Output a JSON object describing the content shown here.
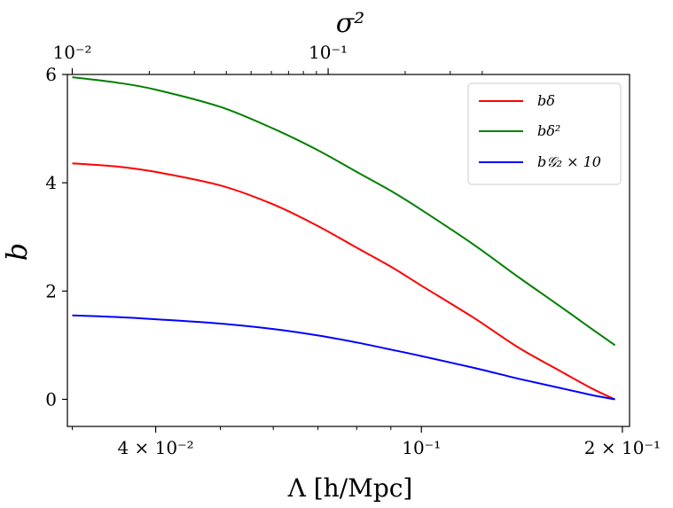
{
  "chart_data": {
    "type": "line",
    "xlabel": "Λ [h/Mpc]",
    "ylabel": "b",
    "top_xlabel": "σ²",
    "xscale": "log",
    "xlim": [
      0.0295,
      0.205
    ],
    "ylim": [
      -0.5,
      6.0
    ],
    "yticks": [
      0,
      2,
      4,
      6
    ],
    "ytick_labels": [
      "0",
      "2",
      "4",
      "6"
    ],
    "xticks": [
      0.04,
      0.1,
      0.2
    ],
    "xtick_labels": [
      "4 × 10⁻²",
      "10⁻¹",
      "2 × 10⁻¹"
    ],
    "top_xticks": [
      0.03,
      0.0725
    ],
    "top_xtick_labels": [
      "10⁻²",
      "10⁻¹"
    ],
    "legend_position": "top-right",
    "series": [
      {
        "name": "b_δ",
        "label": "bδ",
        "color": "#ff0000",
        "x": [
          0.03,
          0.035,
          0.04,
          0.05,
          0.06,
          0.07,
          0.08,
          0.09,
          0.1,
          0.12,
          0.14,
          0.16,
          0.18,
          0.195
        ],
        "y": [
          4.36,
          4.3,
          4.2,
          3.95,
          3.6,
          3.2,
          2.8,
          2.45,
          2.1,
          1.5,
          0.95,
          0.55,
          0.2,
          0.0
        ]
      },
      {
        "name": "b_δ²",
        "label": "bδ²",
        "color": "#008000",
        "x": [
          0.03,
          0.035,
          0.04,
          0.05,
          0.06,
          0.07,
          0.08,
          0.09,
          0.1,
          0.12,
          0.14,
          0.16,
          0.18,
          0.195
        ],
        "y": [
          5.95,
          5.85,
          5.72,
          5.4,
          5.0,
          4.6,
          4.2,
          3.85,
          3.5,
          2.85,
          2.25,
          1.75,
          1.3,
          1.0
        ]
      },
      {
        "name": "b_G₂ × 10",
        "label": "b𝒢₂ × 10",
        "color": "#0000ff",
        "x": [
          0.03,
          0.035,
          0.04,
          0.05,
          0.06,
          0.07,
          0.08,
          0.09,
          0.1,
          0.12,
          0.14,
          0.16,
          0.18,
          0.195
        ],
        "y": [
          1.55,
          1.52,
          1.48,
          1.4,
          1.3,
          1.18,
          1.05,
          0.92,
          0.8,
          0.58,
          0.38,
          0.22,
          0.08,
          0.0
        ]
      }
    ]
  }
}
